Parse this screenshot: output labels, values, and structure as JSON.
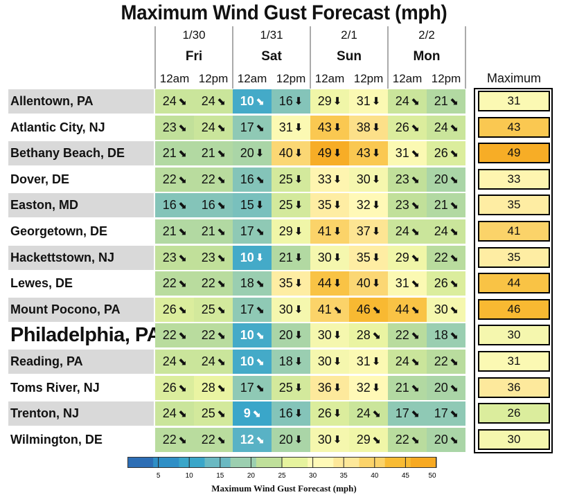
{
  "chart_data": {
    "type": "heatmap",
    "title": "Maximum Wind Gust Forecast (mph)",
    "days": [
      {
        "date": "1/30",
        "name": "Fri"
      },
      {
        "date": "1/31",
        "name": "Sat"
      },
      {
        "date": "2/1",
        "name": "Sun"
      },
      {
        "date": "2/2",
        "name": "Mon"
      }
    ],
    "time_slots": [
      "12am",
      "12pm",
      "12am",
      "12pm",
      "12am",
      "12pm",
      "12am",
      "12pm"
    ],
    "max_column_label": "Maximum",
    "highlighted_city": "Philadelphia, PA",
    "rows": [
      {
        "city": "Allentown, PA",
        "values": [
          24,
          24,
          10,
          16,
          29,
          31,
          24,
          21
        ],
        "dirs": [
          "SE",
          "SE",
          "SE",
          "S",
          "S",
          "S",
          "SE",
          "SE"
        ],
        "max": 31
      },
      {
        "city": "Atlantic City, NJ",
        "values": [
          23,
          24,
          17,
          31,
          43,
          38,
          26,
          24
        ],
        "dirs": [
          "SE",
          "SE",
          "SE",
          "S",
          "S",
          "S",
          "SE",
          "SE"
        ],
        "max": 43
      },
      {
        "city": "Bethany Beach, DE",
        "values": [
          21,
          21,
          20,
          40,
          49,
          43,
          31,
          26
        ],
        "dirs": [
          "SE",
          "SE",
          "S",
          "S",
          "S",
          "S",
          "SE",
          "SE"
        ],
        "max": 49
      },
      {
        "city": "Dover, DE",
        "values": [
          22,
          22,
          16,
          25,
          33,
          30,
          23,
          20
        ],
        "dirs": [
          "SE",
          "SE",
          "SE",
          "S",
          "S",
          "S",
          "SE",
          "SE"
        ],
        "max": 33
      },
      {
        "city": "Easton, MD",
        "values": [
          16,
          16,
          15,
          25,
          35,
          32,
          23,
          21
        ],
        "dirs": [
          "SE",
          "SE",
          "S",
          "S",
          "S",
          "S",
          "SE",
          "SE"
        ],
        "max": 35
      },
      {
        "city": "Georgetown, DE",
        "values": [
          21,
          21,
          17,
          29,
          41,
          37,
          24,
          24
        ],
        "dirs": [
          "SE",
          "SE",
          "SE",
          "S",
          "S",
          "S",
          "SE",
          "SE"
        ],
        "max": 41
      },
      {
        "city": "Hackettstown, NJ",
        "values": [
          23,
          23,
          10,
          21,
          30,
          35,
          29,
          22
        ],
        "dirs": [
          "SE",
          "SE",
          "S",
          "S",
          "S",
          "S",
          "SE",
          "SE"
        ],
        "max": 35
      },
      {
        "city": "Lewes, DE",
        "values": [
          22,
          22,
          18,
          35,
          44,
          40,
          31,
          26
        ],
        "dirs": [
          "SE",
          "SE",
          "SE",
          "S",
          "S",
          "S",
          "SE",
          "SE"
        ],
        "max": 44
      },
      {
        "city": "Mount Pocono, PA",
        "values": [
          26,
          25,
          17,
          30,
          41,
          46,
          44,
          30
        ],
        "dirs": [
          "SE",
          "SE",
          "SE",
          "S",
          "SE",
          "SE",
          "SE",
          "SE"
        ],
        "max": 46
      },
      {
        "city": "Philadelphia, PA",
        "values": [
          22,
          22,
          10,
          20,
          30,
          28,
          22,
          18
        ],
        "dirs": [
          "SE",
          "SE",
          "SE",
          "S",
          "S",
          "SE",
          "SE",
          "SE"
        ],
        "max": 30
      },
      {
        "city": "Reading, PA",
        "values": [
          24,
          24,
          10,
          18,
          30,
          31,
          24,
          22
        ],
        "dirs": [
          "SE",
          "SE",
          "SE",
          "S",
          "S",
          "S",
          "SE",
          "SE"
        ],
        "max": 31
      },
      {
        "city": "Toms River, NJ",
        "values": [
          26,
          28,
          17,
          25,
          36,
          32,
          21,
          20
        ],
        "dirs": [
          "SE",
          "SE",
          "SE",
          "S",
          "S",
          "S",
          "SE",
          "SE"
        ],
        "max": 36
      },
      {
        "city": "Trenton, NJ",
        "values": [
          24,
          25,
          9,
          16,
          26,
          24,
          17,
          17
        ],
        "dirs": [
          "SE",
          "SE",
          "SE",
          "S",
          "S",
          "SE",
          "SE",
          "SE"
        ],
        "max": 26
      },
      {
        "city": "Wilmington, DE",
        "values": [
          22,
          22,
          12,
          20,
          30,
          29,
          22,
          20
        ],
        "dirs": [
          "SE",
          "SE",
          "SE",
          "S",
          "S",
          "SE",
          "SE",
          "SE"
        ],
        "max": 30
      }
    ],
    "colorbar": {
      "label": "Maximum Wind Gust Forecast (mph)",
      "min": 0,
      "max": 50,
      "ticks": [
        5,
        10,
        15,
        20,
        25,
        30,
        35,
        40,
        45,
        50
      ],
      "colors": [
        "#2d6eb5",
        "#2f8fc6",
        "#3aa6c9",
        "#6ab9c2",
        "#9ccfb0",
        "#bfdf9a",
        "#e6f39e",
        "#fffab8",
        "#fde89a",
        "#fbd36a",
        "#f8bb34",
        "#f7a922"
      ]
    }
  }
}
